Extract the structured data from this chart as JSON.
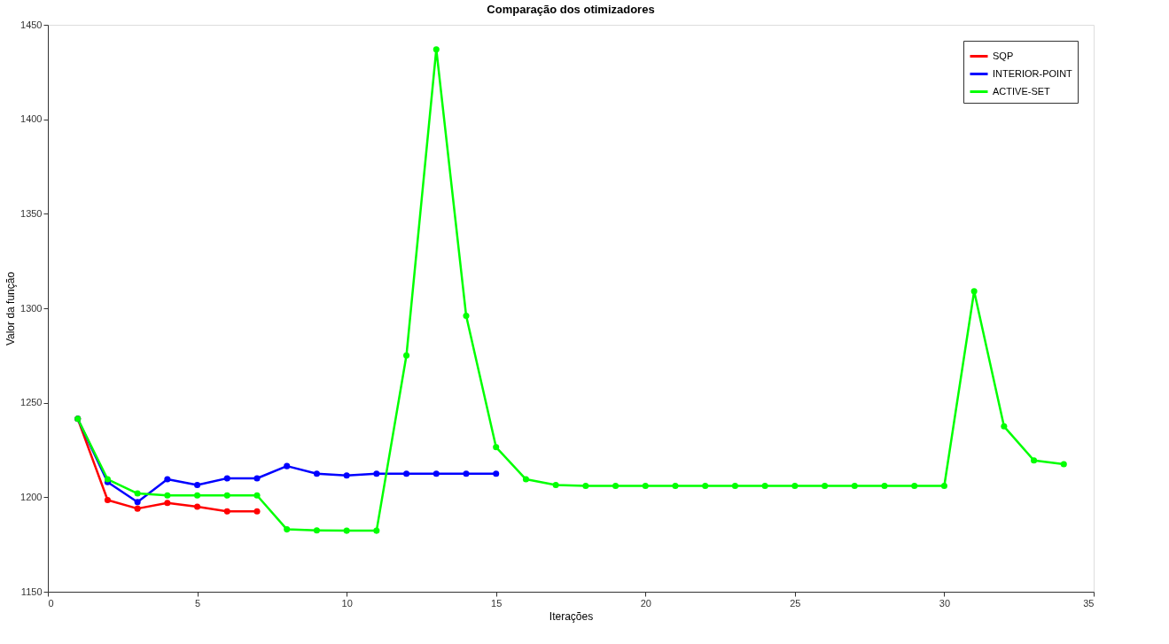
{
  "chart_data": {
    "type": "line",
    "title": "Comparação dos otimizadores",
    "xlabel": "Iterações",
    "ylabel": "Valor da função",
    "xlim": [
      0,
      35
    ],
    "xticks": [
      0,
      5,
      10,
      15,
      20,
      25,
      30,
      35
    ],
    "ylim": [
      1150,
      1450
    ],
    "yticks": [
      1150,
      1200,
      1250,
      1300,
      1350,
      1400,
      1450
    ],
    "grid": false,
    "legend": "top right",
    "marker": "circle",
    "line_style": "solid",
    "series": [
      {
        "name": "SQP",
        "color": "#ff0000",
        "x": [
          1,
          2,
          3,
          4,
          5,
          6,
          7
        ],
        "values": [
          1241.5,
          1198.5,
          1194,
          1197,
          1195,
          1192.5,
          1192.5
        ]
      },
      {
        "name": "INTERIOR-POINT",
        "color": "#0000ff",
        "x": [
          1,
          2,
          3,
          4,
          5,
          6,
          7,
          8,
          9,
          10,
          11,
          12,
          13,
          14,
          15
        ],
        "values": [
          1241.5,
          1208,
          1197.5,
          1209.5,
          1206.5,
          1210,
          1210,
          1216.5,
          1212.5,
          1211.5,
          1212.5,
          1212.5,
          1212.5,
          1212.5,
          1212.5
        ]
      },
      {
        "name": "ACTIVE-SET",
        "color": "#00ff00",
        "x": [
          1,
          2,
          3,
          4,
          5,
          6,
          7,
          8,
          9,
          10,
          11,
          12,
          13,
          14,
          15,
          16,
          17,
          18,
          19,
          20,
          21,
          22,
          23,
          24,
          25,
          26,
          27,
          28,
          29,
          30,
          31,
          32,
          33,
          34
        ],
        "values": [
          1241.5,
          1209.5,
          1202,
          1201,
          1201,
          1201,
          1201,
          1183,
          1182.5,
          1182.3,
          1182.3,
          1275,
          1437,
          1296,
          1226.5,
          1209.5,
          1206.5,
          1206,
          1206,
          1206,
          1206,
          1206,
          1206,
          1206,
          1206,
          1206,
          1206,
          1206,
          1206,
          1206,
          1309,
          1237.5,
          1219.5,
          1217.5
        ]
      }
    ]
  }
}
